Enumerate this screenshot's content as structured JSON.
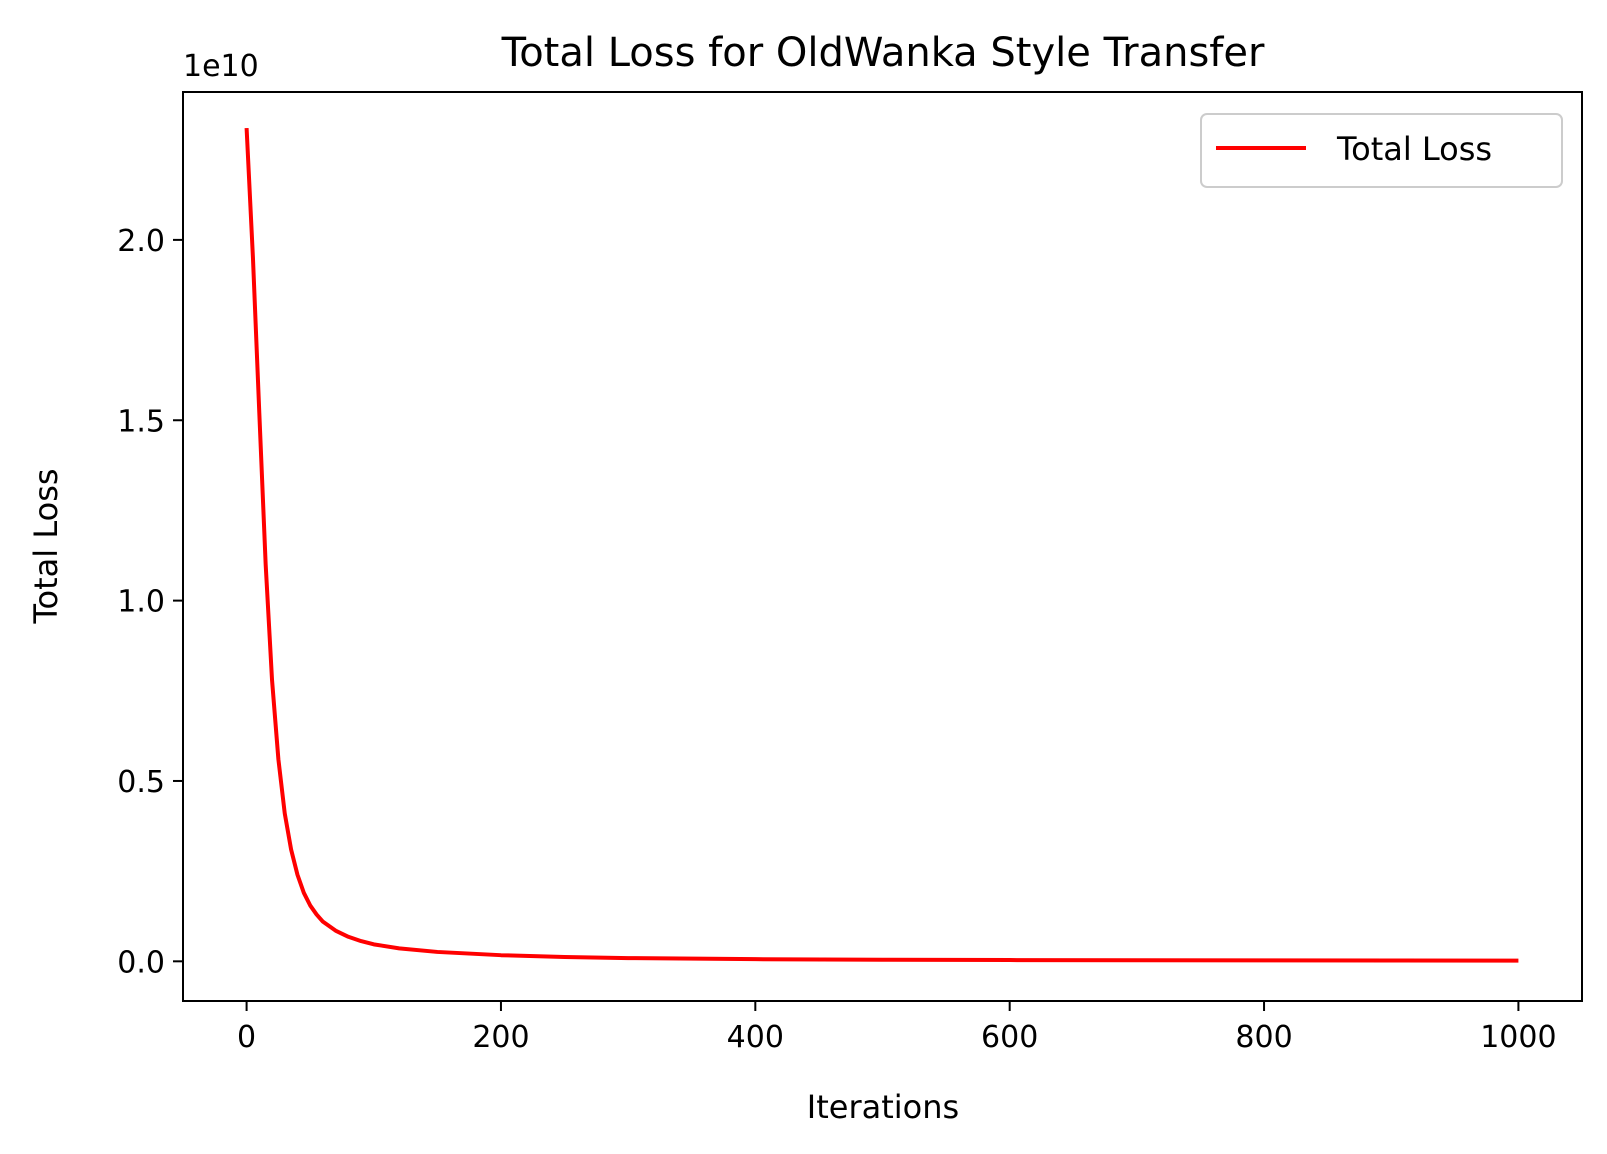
{
  "chart_data": {
    "type": "line",
    "title": "Total Loss for OldWanka Style Transfer",
    "xlabel": "Iterations",
    "ylabel": "Total Loss",
    "y_offset_label": "1e10",
    "xlim": [
      -50,
      1050
    ],
    "ylim": [
      -0.11,
      2.41
    ],
    "x_ticks": [
      0,
      200,
      400,
      600,
      800,
      1000
    ],
    "x_tick_labels": [
      "0",
      "200",
      "400",
      "600",
      "800",
      "1000"
    ],
    "y_ticks": [
      0.0,
      0.5,
      1.0,
      1.5,
      2.0
    ],
    "y_tick_labels": [
      "0.0",
      "0.5",
      "1.0",
      "1.5",
      "2.0"
    ],
    "grid": false,
    "legend_position": "top-right",
    "series": [
      {
        "name": "Total Loss",
        "color": "#ff0000",
        "x": [
          0,
          5,
          10,
          15,
          20,
          25,
          30,
          35,
          40,
          45,
          50,
          55,
          60,
          70,
          80,
          90,
          100,
          120,
          150,
          200,
          250,
          300,
          400,
          500,
          600,
          700,
          800,
          900,
          1000
        ],
        "values": [
          2.31,
          1.95,
          1.52,
          1.1,
          0.78,
          0.56,
          0.41,
          0.31,
          0.24,
          0.19,
          0.155,
          0.13,
          0.11,
          0.085,
          0.068,
          0.056,
          0.047,
          0.036,
          0.026,
          0.017,
          0.012,
          0.009,
          0.006,
          0.0045,
          0.0035,
          0.003,
          0.0026,
          0.0023,
          0.002
        ]
      }
    ]
  }
}
